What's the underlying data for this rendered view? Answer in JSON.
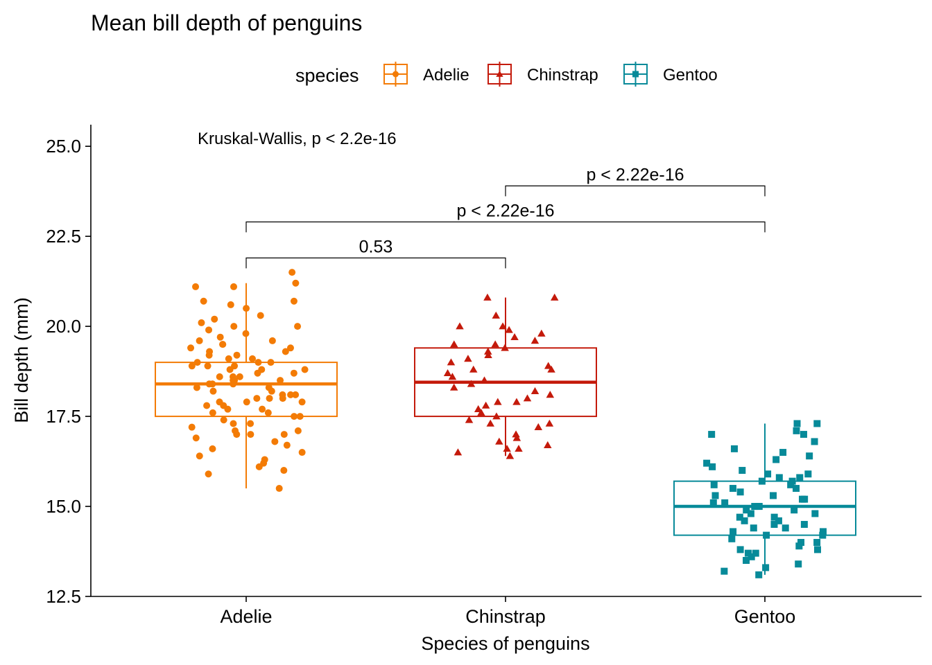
{
  "chart_data": {
    "type": "boxplot",
    "title": "Mean bill depth of penguins",
    "xlabel": "Species of penguins",
    "ylabel": "Bill depth (mm)",
    "ylim": [
      12.5,
      25.6
    ],
    "yticks": [
      "12.5",
      "15.0",
      "17.5",
      "20.0",
      "22.5",
      "25.0"
    ],
    "categories": [
      "Adelie",
      "Chinstrap",
      "Gentoo"
    ],
    "grid": false,
    "legend": {
      "title": "species",
      "position": "top",
      "entries": [
        {
          "name": "Adelie",
          "color": "#F37B05",
          "marker": "circle"
        },
        {
          "name": "Chinstrap",
          "color": "#C41A0B",
          "marker": "triangle"
        },
        {
          "name": "Gentoo",
          "color": "#078A99",
          "marker": "square"
        }
      ]
    },
    "series": [
      {
        "name": "Adelie",
        "color": "#F37B05",
        "marker": "circle",
        "box": {
          "whisker_low": 15.5,
          "q1": 17.5,
          "median": 18.4,
          "q3": 19.0,
          "whisker_high": 21.2
        },
        "points": [
          21.5,
          21.2,
          21.1,
          21.1,
          20.7,
          20.7,
          20.6,
          20.5,
          20.3,
          20.2,
          20.1,
          20.0,
          20.0,
          19.9,
          19.8,
          19.7,
          19.6,
          19.6,
          19.5,
          19.5,
          19.4,
          19.4,
          19.3,
          19.3,
          19.2,
          19.2,
          19.1,
          19.1,
          19.0,
          19.0,
          19.0,
          18.9,
          18.9,
          18.9,
          18.8,
          18.8,
          18.8,
          18.7,
          18.7,
          18.6,
          18.6,
          18.6,
          18.5,
          18.5,
          18.5,
          18.4,
          18.4,
          18.4,
          18.3,
          18.3,
          18.2,
          18.2,
          18.1,
          18.1,
          18.1,
          18.0,
          18.0,
          18.0,
          17.9,
          17.9,
          17.9,
          17.8,
          17.8,
          17.7,
          17.7,
          17.6,
          17.6,
          17.5,
          17.5,
          17.4,
          17.3,
          17.3,
          17.2,
          17.1,
          17.1,
          17.0,
          17.0,
          17.0,
          16.9,
          16.8,
          16.7,
          16.6,
          16.5,
          16.4,
          16.3,
          16.2,
          16.1,
          16.0,
          15.9,
          15.5
        ]
      },
      {
        "name": "Chinstrap",
        "color": "#C41A0B",
        "marker": "triangle",
        "box": {
          "whisker_low": 16.4,
          "q1": 17.5,
          "median": 18.45,
          "q3": 19.4,
          "whisker_high": 20.8
        },
        "points": [
          20.8,
          20.8,
          20.3,
          20.0,
          20.0,
          19.9,
          19.8,
          19.7,
          19.6,
          19.5,
          19.5,
          19.4,
          19.3,
          19.2,
          19.1,
          19.0,
          18.9,
          18.8,
          18.8,
          18.7,
          18.6,
          18.5,
          18.4,
          18.3,
          18.2,
          18.1,
          18.0,
          17.9,
          17.9,
          17.8,
          17.7,
          17.6,
          17.5,
          17.4,
          17.3,
          17.3,
          17.2,
          17.0,
          16.9,
          16.8,
          16.7,
          16.6,
          16.6,
          16.5,
          16.4
        ]
      },
      {
        "name": "Gentoo",
        "color": "#078A99",
        "marker": "square",
        "box": {
          "whisker_low": 13.1,
          "q1": 14.2,
          "median": 15.0,
          "q3": 15.7,
          "whisker_high": 17.3
        },
        "points": [
          17.3,
          17.3,
          17.1,
          17.0,
          17.0,
          16.8,
          16.6,
          16.5,
          16.4,
          16.3,
          16.2,
          16.1,
          16.0,
          15.9,
          15.9,
          15.8,
          15.8,
          15.7,
          15.7,
          15.6,
          15.6,
          15.5,
          15.5,
          15.4,
          15.3,
          15.3,
          15.2,
          15.2,
          15.1,
          15.1,
          15.0,
          15.0,
          15.0,
          14.9,
          14.9,
          14.8,
          14.8,
          14.7,
          14.7,
          14.6,
          14.6,
          14.5,
          14.5,
          14.4,
          14.4,
          14.3,
          14.3,
          14.2,
          14.2,
          14.1,
          14.0,
          14.0,
          13.9,
          13.8,
          13.8,
          13.7,
          13.7,
          13.6,
          13.5,
          13.4,
          13.3,
          13.2,
          13.1
        ]
      }
    ],
    "annotations": {
      "global_test": "Kruskal-Wallis, p < 2.2e-16",
      "comparisons": [
        {
          "from": "Adelie",
          "to": "Chinstrap",
          "y": 21.9,
          "label": "0.53"
        },
        {
          "from": "Adelie",
          "to": "Gentoo",
          "y": 22.9,
          "label": "p < 2.22e-16"
        },
        {
          "from": "Chinstrap",
          "to": "Gentoo",
          "y": 23.9,
          "label": "p < 2.22e-16"
        }
      ]
    }
  }
}
